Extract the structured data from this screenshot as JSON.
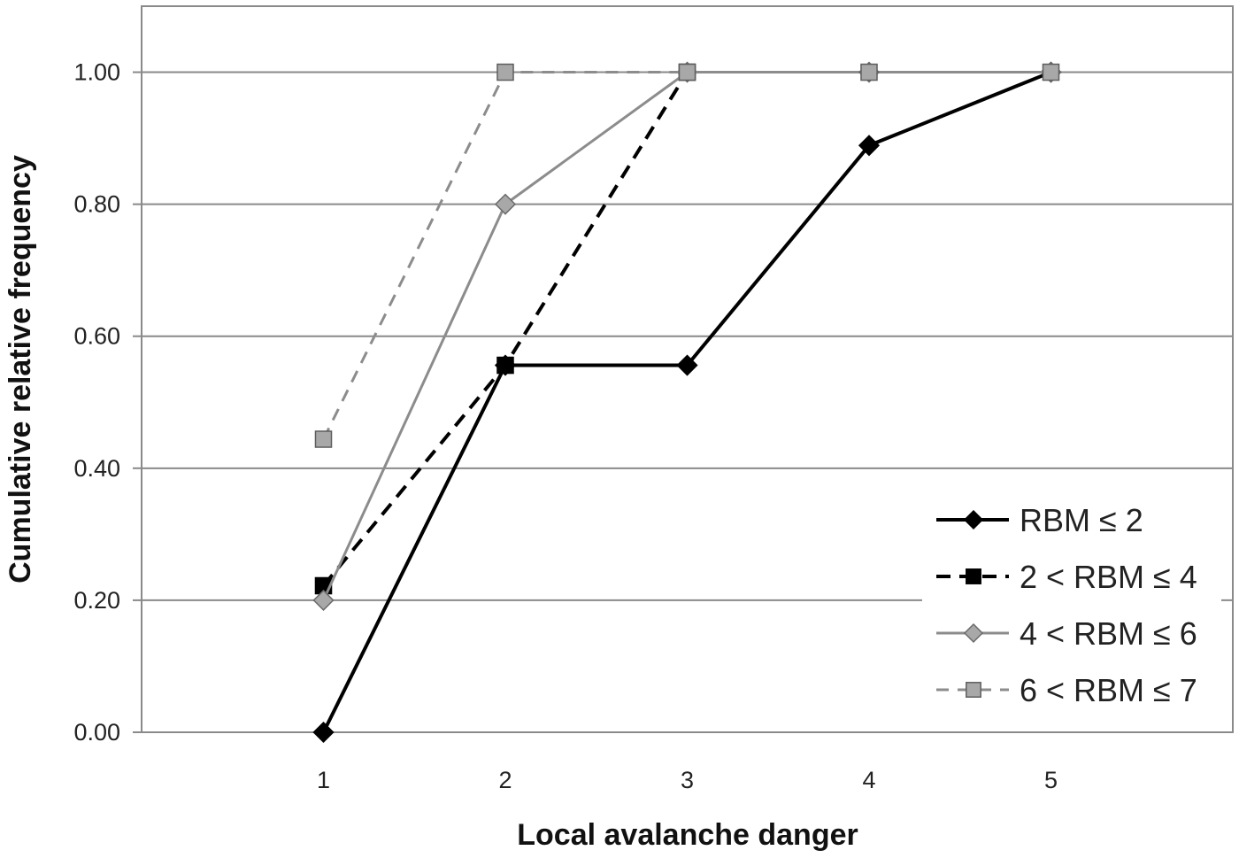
{
  "chart_data": {
    "type": "line",
    "title": "",
    "xlabel": "Local avalanche danger",
    "ylabel": "Cumulative relative frequency",
    "x": [
      1,
      2,
      3,
      4,
      5
    ],
    "x_tick_labels": [
      "1",
      "2",
      "3",
      "4",
      "5"
    ],
    "xlim": [
      0,
      6
    ],
    "ylim": [
      0,
      1.1
    ],
    "y_ticks": [
      0.0,
      0.2,
      0.4,
      0.6,
      0.8,
      1.0
    ],
    "y_tick_labels": [
      "0.00",
      "0.20",
      "0.40",
      "0.60",
      "0.80",
      "1.00"
    ],
    "grid": "horizontal",
    "legend_position": "bottom-right",
    "series": [
      {
        "name": "RBM ≤ 2",
        "values": [
          0.0,
          0.556,
          0.556,
          0.889,
          1.0
        ],
        "color": "#000000",
        "line_style": "solid",
        "marker": "diamond"
      },
      {
        "name": "2 < RBM ≤ 4",
        "values": [
          0.222,
          0.556,
          1.0,
          null,
          null
        ],
        "color": "#000000",
        "line_style": "dashed",
        "marker": "square"
      },
      {
        "name": "4 < RBM ≤ 6",
        "values": [
          0.2,
          0.8,
          1.0,
          1.0,
          1.0
        ],
        "color": "#8c8c8c",
        "line_style": "solid",
        "marker": "diamond"
      },
      {
        "name": "6 < RBM ≤ 7",
        "values": [
          0.444,
          1.0,
          1.0,
          1.0,
          1.0
        ],
        "color": "#8c8c8c",
        "line_style": "dashed",
        "marker": "square"
      }
    ]
  }
}
